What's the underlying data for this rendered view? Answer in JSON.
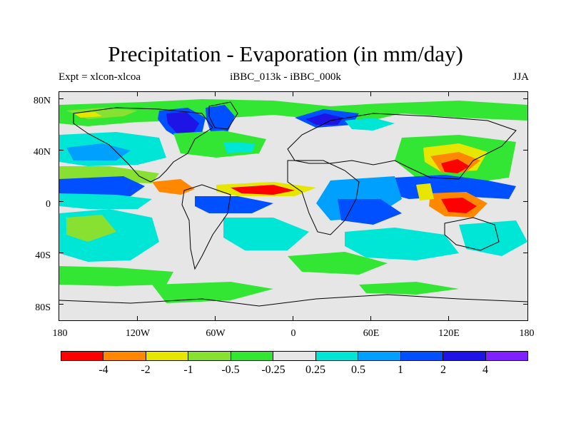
{
  "title": "Precipitation - Evaporation (in mm/day)",
  "subtitle_left": "Expt = xlcon-xlcoa",
  "subtitle_center": "iBBC_013k - iBBC_000k",
  "subtitle_right": "JJA",
  "map": {
    "projection": "cylindrical-equidistant",
    "lat_ticks": [
      "80N",
      "40N",
      "0",
      "40S",
      "80S"
    ],
    "lon_ticks": [
      "180",
      "120W",
      "60W",
      "0",
      "60E",
      "120E",
      "180"
    ]
  },
  "colorbar": {
    "colors": [
      "#ff0000",
      "#ff8800",
      "#e6e600",
      "#88e030",
      "#33e633",
      "#e6e6e6",
      "#00e6d6",
      "#00a0ff",
      "#0050ff",
      "#1e14e6",
      "#8020ff"
    ],
    "labels": [
      "-4",
      "-2",
      "-1",
      "-0.5",
      "-0.25",
      "0.25",
      "0.5",
      "1",
      "2",
      "4"
    ]
  }
}
